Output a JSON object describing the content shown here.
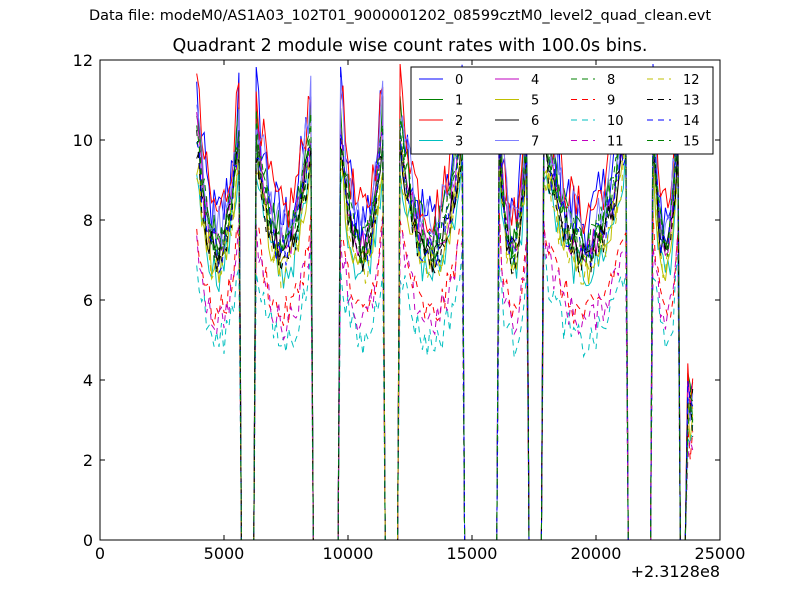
{
  "figure": {
    "suptitle": "Data file: modeM0/AS1A03_102T01_9000001202_08599cztM0_level2_quad_clean.evt"
  },
  "chart_data": {
    "type": "line",
    "title": "Quadrant 2 module wise count rates with 100.0s bins.",
    "xlabel": "",
    "ylabel": "",
    "xlim": [
      0,
      25000
    ],
    "ylim": [
      0,
      12
    ],
    "x_offset_label": "+2.3128e8",
    "x_ticks": [
      0,
      5000,
      10000,
      15000,
      20000,
      25000
    ],
    "y_ticks": [
      0,
      2,
      4,
      6,
      8,
      10,
      12
    ],
    "grid": false,
    "legend_position": "top-right",
    "legend_columns": 4,
    "orbit_segments": [
      [
        3900,
        5600
      ],
      [
        6300,
        8500
      ],
      [
        9700,
        11400
      ],
      [
        12100,
        14600
      ],
      [
        16100,
        17200
      ],
      [
        17900,
        21200
      ],
      [
        22300,
        23300
      ],
      [
        23700,
        23900
      ]
    ],
    "series": [
      {
        "name": "0",
        "color": "#0000ff",
        "style": "solid",
        "level": 9.1,
        "noise": 0.85
      },
      {
        "name": "1",
        "color": "#008000",
        "style": "solid",
        "level": 8.6,
        "noise": 0.6
      },
      {
        "name": "2",
        "color": "#ff0000",
        "style": "solid",
        "level": 9.3,
        "noise": 0.65
      },
      {
        "name": "3",
        "color": "#00bfbf",
        "style": "solid",
        "level": 7.6,
        "noise": 0.5
      },
      {
        "name": "4",
        "color": "#bf00bf",
        "style": "solid",
        "level": 8.3,
        "noise": 0.5
      },
      {
        "name": "5",
        "color": "#bfbf00",
        "style": "solid",
        "level": 7.8,
        "noise": 0.5
      },
      {
        "name": "6",
        "color": "#000000",
        "style": "solid",
        "level": 8.1,
        "noise": 0.5
      },
      {
        "name": "7",
        "color": "#7f7fff",
        "style": "solid",
        "level": 8.9,
        "noise": 0.7
      },
      {
        "name": "8",
        "color": "#008000",
        "style": "dashed",
        "level": 8.4,
        "noise": 0.5
      },
      {
        "name": "9",
        "color": "#ff0000",
        "style": "dashed",
        "level": 6.4,
        "noise": 0.45
      },
      {
        "name": "10",
        "color": "#00bfbf",
        "style": "dashed",
        "level": 5.6,
        "noise": 0.45
      },
      {
        "name": "11",
        "color": "#bf00bf",
        "style": "dashed",
        "level": 6.2,
        "noise": 0.45
      },
      {
        "name": "12",
        "color": "#bfbf00",
        "style": "dashed",
        "level": 7.7,
        "noise": 0.5
      },
      {
        "name": "13",
        "color": "#000000",
        "style": "dashed",
        "level": 8.0,
        "noise": 0.5
      },
      {
        "name": "14",
        "color": "#0000ff",
        "style": "dashed",
        "level": 8.2,
        "noise": 0.55
      },
      {
        "name": "15",
        "color": "#008000",
        "style": "dashed",
        "level": 8.3,
        "noise": 0.5
      }
    ]
  }
}
